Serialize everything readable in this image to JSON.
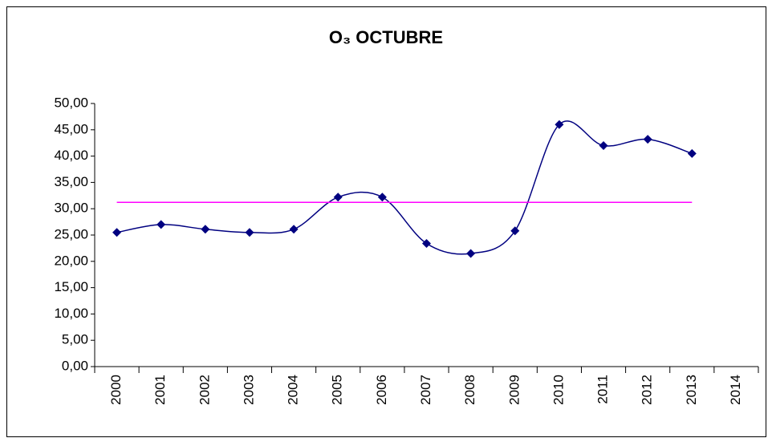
{
  "chart_data": {
    "type": "line",
    "title": "O₃ OCTUBRE",
    "categories": [
      "2000",
      "2001",
      "2002",
      "2003",
      "2004",
      "2005",
      "2006",
      "2007",
      "2008",
      "2009",
      "2010",
      "2011",
      "2012",
      "2013",
      "2014"
    ],
    "series": [
      {
        "color": "#000080",
        "marker": "diamond",
        "smooth": true,
        "values": [
          25.5,
          27.0,
          26.1,
          25.5,
          26.1,
          32.2,
          32.2,
          23.4,
          21.5,
          25.8,
          46.0,
          42.0,
          43.2,
          40.5,
          null
        ]
      },
      {
        "color": "#ff00ff",
        "marker": "none",
        "smooth": false,
        "values": [
          31.21,
          31.21,
          31.21,
          31.21,
          31.21,
          31.21,
          31.21,
          31.21,
          31.21,
          31.21,
          31.21,
          31.21,
          31.21,
          31.21,
          null
        ]
      }
    ],
    "ylim": [
      0,
      50
    ],
    "yticks": [
      {
        "value": 0,
        "label": "0,00"
      },
      {
        "value": 5,
        "label": "5,00"
      },
      {
        "value": 10,
        "label": "10,00"
      },
      {
        "value": 15,
        "label": "15,00"
      },
      {
        "value": 20,
        "label": "20,00"
      },
      {
        "value": 25,
        "label": "25,00"
      },
      {
        "value": 30,
        "label": "30,00"
      },
      {
        "value": 35,
        "label": "35,00"
      },
      {
        "value": 40,
        "label": "40,00"
      },
      {
        "value": 45,
        "label": "45,00"
      },
      {
        "value": 50,
        "label": "50,00"
      }
    ],
    "grid": false
  }
}
